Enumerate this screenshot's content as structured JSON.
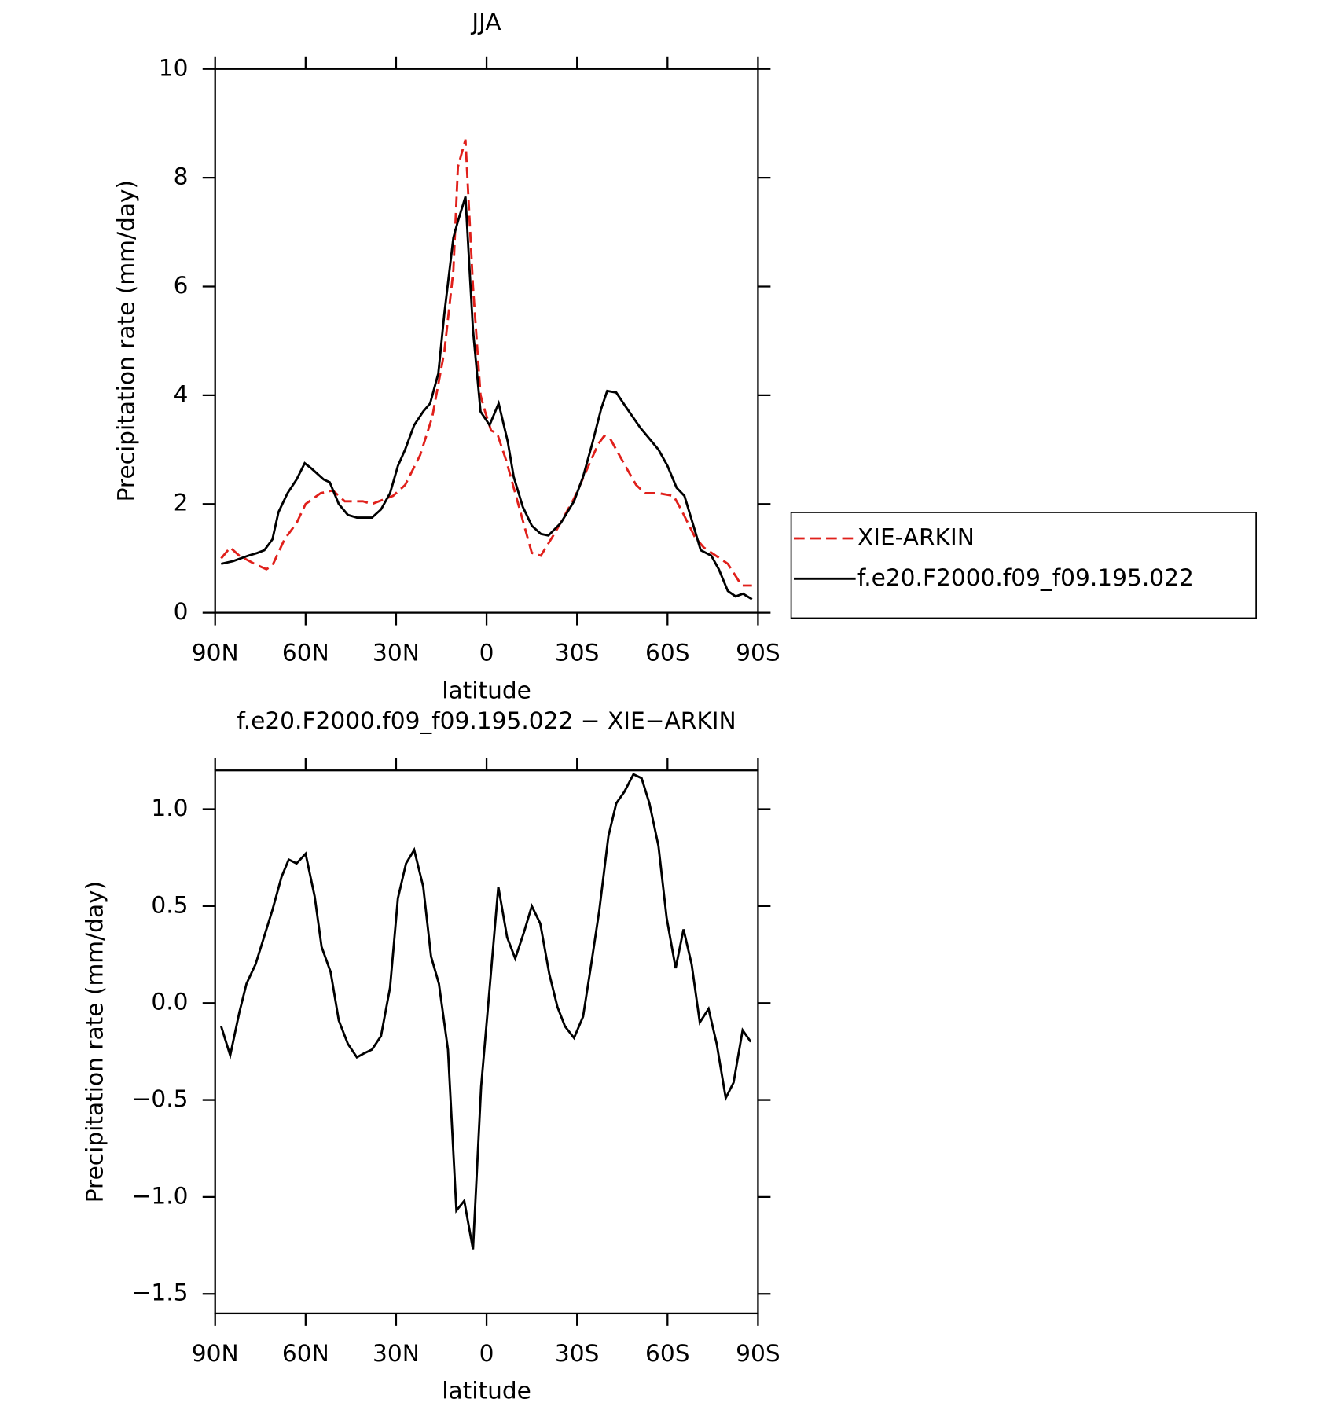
{
  "chart_data": [
    {
      "type": "line",
      "title": "JJA",
      "x_label": "latitude",
      "y_label": "Precipitation rate (mm/day)",
      "xlim": [
        90,
        -90
      ],
      "xticks": [
        {
          "value": 90,
          "label": "90N"
        },
        {
          "value": 60,
          "label": "60N"
        },
        {
          "value": 30,
          "label": "30N"
        },
        0,
        {
          "value": -30,
          "label": "30S"
        },
        {
          "value": -60,
          "label": "60S"
        },
        {
          "value": -90,
          "label": "90S"
        }
      ],
      "ylim": [
        0,
        10
      ],
      "yticks": [
        0,
        2,
        4,
        6,
        8,
        10
      ],
      "legend": "right",
      "series": [
        {
          "name": "XIE-ARKIN",
          "color": "#e0201b",
          "line_style": "dashed",
          "x": [
            88,
            85,
            82,
            77,
            73,
            71,
            67,
            63,
            60,
            55,
            51,
            47,
            41,
            38,
            31,
            27,
            22,
            18,
            14,
            11,
            9.5,
            7,
            4.5,
            2,
            0.5,
            -1.5,
            -3.5,
            -6.5,
            -11,
            -15,
            -18,
            -23,
            -29,
            -33,
            -37,
            -39,
            -41,
            -46,
            -49.6,
            -52.5,
            -57,
            -62,
            -64.5,
            -69,
            -72,
            -76,
            -80,
            -84.6,
            -88
          ],
          "values": [
            1.0,
            1.2,
            1.05,
            0.9,
            0.8,
            0.87,
            1.35,
            1.65,
            2.0,
            2.2,
            2.25,
            2.05,
            2.05,
            2.0,
            2.15,
            2.35,
            2.9,
            3.6,
            4.8,
            6.3,
            8.2,
            8.7,
            6.0,
            4.0,
            3.7,
            3.35,
            3.3,
            2.8,
            1.9,
            1.1,
            1.05,
            1.5,
            2.1,
            2.6,
            3.1,
            3.25,
            3.2,
            2.7,
            2.35,
            2.2,
            2.2,
            2.15,
            1.9,
            1.4,
            1.2,
            1.05,
            0.9,
            0.5,
            0.5
          ]
        },
        {
          "name": "f.e20.F2000.f09_f09.195.022",
          "color": "#000000",
          "line_style": "solid",
          "x": [
            88,
            84,
            79,
            76,
            73.7,
            71,
            69,
            66,
            63,
            60.3,
            58,
            54,
            52,
            49,
            46,
            43,
            38,
            35,
            32,
            29.4,
            27,
            24,
            21,
            18.7,
            16,
            14,
            11,
            9.5,
            7,
            4.5,
            2,
            -1,
            -4,
            -7,
            -9,
            -12,
            -15,
            -18,
            -20.5,
            -24.6,
            -29,
            -32,
            -35,
            -38,
            -40,
            -43,
            -46,
            -51,
            -54,
            -57,
            -60,
            -63,
            -65.6,
            -68.6,
            -71,
            -74.5,
            -77,
            -80,
            -82.6,
            -85,
            -88
          ],
          "values": [
            0.9,
            0.95,
            1.05,
            1.1,
            1.15,
            1.35,
            1.85,
            2.2,
            2.45,
            2.75,
            2.65,
            2.45,
            2.4,
            2.0,
            1.8,
            1.75,
            1.75,
            1.9,
            2.2,
            2.7,
            3.0,
            3.45,
            3.7,
            3.85,
            4.4,
            5.5,
            6.9,
            7.2,
            7.65,
            5.2,
            3.7,
            3.45,
            3.85,
            3.15,
            2.5,
            1.95,
            1.6,
            1.45,
            1.42,
            1.65,
            2.05,
            2.5,
            3.1,
            3.75,
            4.08,
            4.05,
            3.8,
            3.4,
            3.2,
            3.0,
            2.7,
            2.3,
            2.15,
            1.6,
            1.15,
            1.05,
            0.8,
            0.4,
            0.3,
            0.35,
            0.25
          ]
        }
      ]
    },
    {
      "type": "line",
      "title": "f.e20.F2000.f09_f09.195.022 − XIE−ARKIN",
      "x_label": "latitude",
      "y_label": "Precipitation rate (mm/day)",
      "xlim": [
        90,
        -90
      ],
      "xticks": [
        {
          "value": 90,
          "label": "90N"
        },
        {
          "value": 60,
          "label": "60N"
        },
        {
          "value": 30,
          "label": "30N"
        },
        0,
        {
          "value": -30,
          "label": "30S"
        },
        {
          "value": -60,
          "label": "60S"
        },
        {
          "value": -90,
          "label": "90S"
        }
      ],
      "ylim": [
        -1.6,
        1.2
      ],
      "yticks": [
        {
          "value": 1,
          "label": "1.0"
        },
        0.5,
        {
          "value": 0,
          "label": "0.0"
        },
        {
          "value": -0.5,
          "label": "−0.5"
        },
        {
          "value": -1,
          "label": "−1.0"
        },
        {
          "value": -1.5,
          "label": "−1.5"
        }
      ],
      "series": [
        {
          "color": "#000000",
          "line_style": "solid",
          "x": [
            88,
            85,
            82,
            79.6,
            76.6,
            74,
            71,
            68,
            65.6,
            63,
            60,
            57,
            54.7,
            51.7,
            49,
            46,
            43,
            40.7,
            38,
            35,
            32,
            29.4,
            26.7,
            24,
            21,
            18.4,
            15.8,
            12.8,
            10,
            7.4,
            4.5,
            1.8,
            -1.2,
            -3.9,
            -6.8,
            -9.5,
            -12.5,
            -15,
            -17.8,
            -20.8,
            -23.5,
            -26,
            -29,
            -32,
            -34.7,
            -37.4,
            -40.4,
            -43,
            -45.7,
            -48.7,
            -51.4,
            -54,
            -57,
            -59.7,
            -62.7,
            -65.3,
            -68,
            -70.7,
            -73.6,
            -76.3,
            -79.3,
            -81.9,
            -84.9,
            -87.6
          ],
          "values": [
            -0.12,
            -0.27,
            -0.05,
            0.1,
            0.2,
            0.33,
            0.48,
            0.65,
            0.74,
            0.72,
            0.77,
            0.55,
            0.29,
            0.16,
            -0.09,
            -0.21,
            -0.28,
            -0.26,
            -0.24,
            -0.17,
            0.08,
            0.54,
            0.72,
            0.79,
            0.6,
            0.24,
            0.1,
            -0.24,
            -1.07,
            -1.02,
            -1.27,
            -0.43,
            0.11,
            0.6,
            0.34,
            0.23,
            0.37,
            0.5,
            0.41,
            0.15,
            -0.02,
            -0.12,
            -0.18,
            -0.07,
            0.2,
            0.48,
            0.86,
            1.03,
            1.09,
            1.18,
            1.16,
            1.03,
            0.81,
            0.44,
            0.18,
            0.38,
            0.2,
            -0.1,
            -0.03,
            -0.21,
            -0.49,
            -0.41,
            -0.14,
            -0.2
          ]
        }
      ]
    }
  ]
}
